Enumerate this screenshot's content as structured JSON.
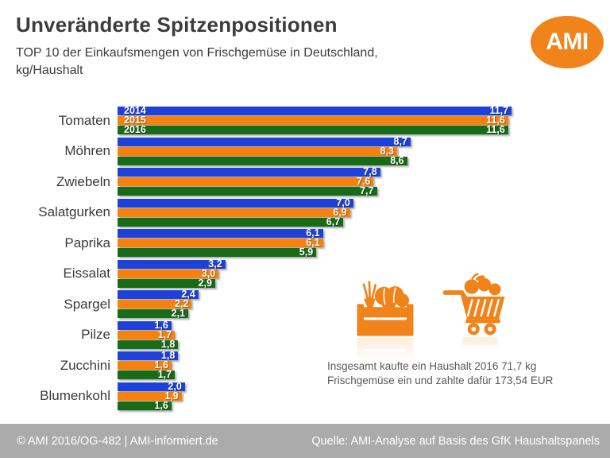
{
  "header": {
    "title": "Unveränderte Spitzenpositionen",
    "subtitle_line1": "TOP 10 der Einkaufsmengen von Frischgemüse in Deutschland,",
    "subtitle_line2": "kg/Haushalt",
    "logo_text": "AMI"
  },
  "colors": {
    "bar_blue": "#1e41d9",
    "bar_orange": "#f5810e",
    "bar_green": "#186b18",
    "logo_orange": "#f0831a",
    "icon_orange": "#f0831a",
    "footer_bg": "#ababab",
    "title_text": "#3c3c3c",
    "annotation_text": "#595959"
  },
  "chart_data": {
    "type": "bar",
    "orientation": "horizontal",
    "title": "TOP 10 der Einkaufsmengen von Frischgemüse in Deutschland, kg/Haushalt",
    "xlabel": "",
    "ylabel": "kg/Haushalt",
    "xlim": [
      0,
      12
    ],
    "grid": false,
    "legend_position": "inside-first-bar-group",
    "decimal_separator": "comma",
    "categories": [
      "Tomaten",
      "Möhren",
      "Zwiebeln",
      "Salatgurken",
      "Paprika",
      "Eissalat",
      "Spargel",
      "Pilze",
      "Zucchini",
      "Blumenkohl"
    ],
    "series": [
      {
        "name": "2014",
        "color": "#1e41d9",
        "values": [
          11.7,
          8.7,
          7.8,
          7.0,
          6.1,
          3.2,
          2.4,
          1.6,
          1.8,
          2.0
        ]
      },
      {
        "name": "2015",
        "color": "#f5810e",
        "values": [
          11.6,
          8.3,
          7.6,
          6.9,
          6.1,
          3.0,
          2.2,
          1.7,
          1.6,
          1.9
        ]
      },
      {
        "name": "2016",
        "color": "#186b18",
        "values": [
          11.6,
          8.6,
          7.7,
          6.7,
          5.9,
          2.9,
          2.1,
          1.8,
          1.7,
          1.6
        ]
      }
    ]
  },
  "annotation": {
    "line1": "Insgesamt kaufte ein Haushalt 2016 71,7 kg",
    "line2": "Frischgemüse ein und zahlte dafür 173,54 EUR",
    "icons": [
      "vegetable-crate-icon",
      "shopping-cart-icon"
    ]
  },
  "footer": {
    "left": "© AMI 2016/OG-482 | AMI-informiert.de",
    "right": "Quelle: AMI-Analyse auf Basis des GfK Haushaltspanels"
  }
}
